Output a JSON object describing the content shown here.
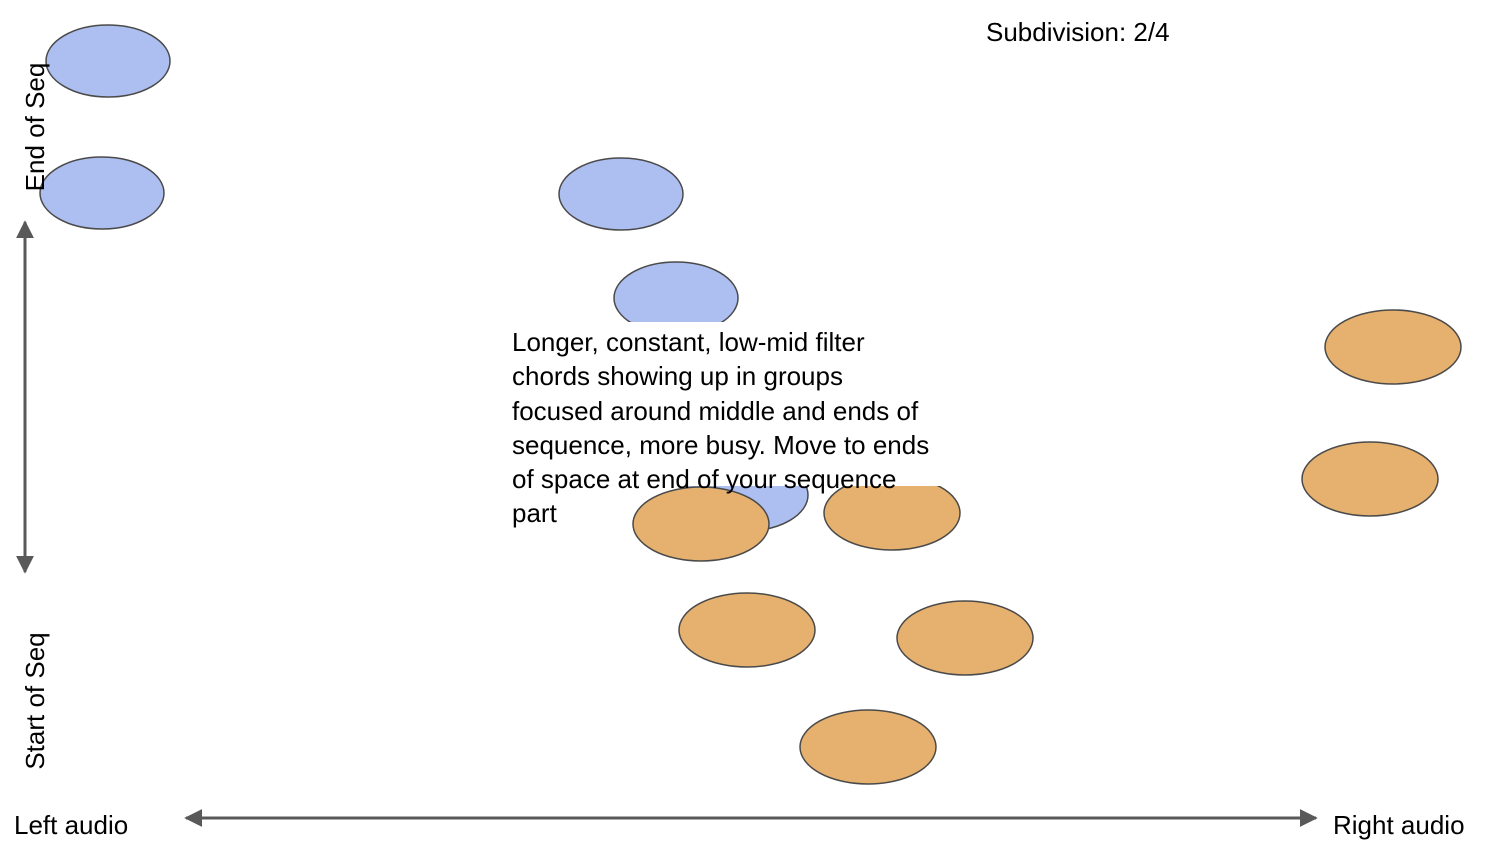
{
  "subdivision": "Subdivision: 2/4",
  "axes": {
    "top_label": "End of Seq",
    "bottom_label": "Start of Seq",
    "left_label": "Left audio",
    "right_label": "Right audio"
  },
  "note": "Longer, constant, low-mid filter\nchords showing up in groups\nfocused around middle and ends of\nsequence, more busy. Move to ends\nof space at end of your sequence\npart",
  "colors": {
    "blue": "#adbff0",
    "orange": "#e6b16e",
    "outline": "#4a4a4a",
    "arrow": "#595959"
  }
}
